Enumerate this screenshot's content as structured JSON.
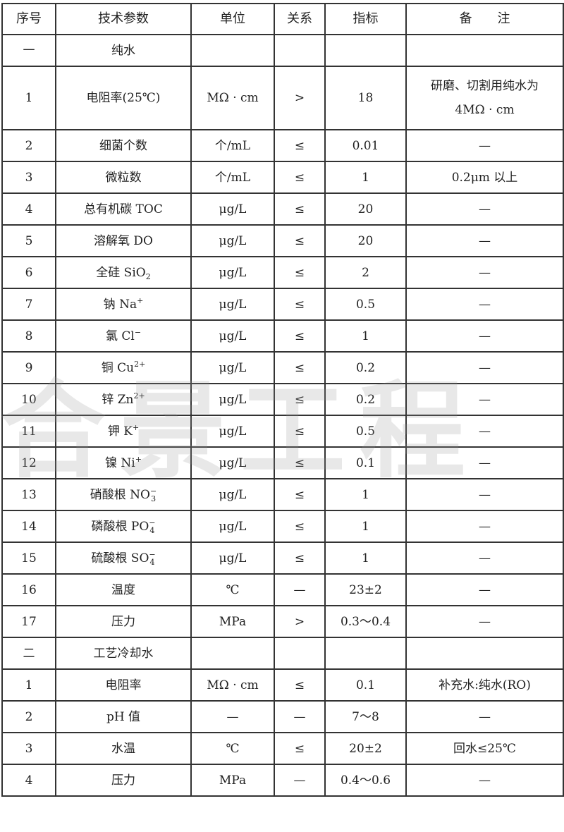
{
  "header": [
    "序号",
    "技术参数",
    "单位",
    "关系",
    "指标",
    "备　　注"
  ],
  "rows": [
    {
      "no": "一",
      "param": "纯水",
      "sub": "",
      "sup": "",
      "unit": "",
      "rel": "",
      "value": "",
      "note": "",
      "section": true
    },
    {
      "no": "1",
      "param": "电阻率(25℃)",
      "sub": "",
      "sup": "",
      "unit": "MΩ · cm",
      "rel": ">",
      "value": "18",
      "note": "研磨、切割用纯水为",
      "note2": "4MΩ · cm",
      "tall": true
    },
    {
      "no": "2",
      "param": "细菌个数",
      "sub": "",
      "sup": "",
      "unit": "个/mL",
      "rel": "≤",
      "value": "0.01",
      "note": "—"
    },
    {
      "no": "3",
      "param": "微粒数",
      "sub": "",
      "sup": "",
      "unit": "个/mL",
      "rel": "≤",
      "value": "1",
      "note": "0.2μm 以上"
    },
    {
      "no": "4",
      "param": "总有机碳 TOC",
      "sub": "",
      "sup": "",
      "unit": "μg/L",
      "rel": "≤",
      "value": "20",
      "note": "—"
    },
    {
      "no": "5",
      "param": "溶解氧 DO",
      "sub": "",
      "sup": "",
      "unit": "μg/L",
      "rel": "≤",
      "value": "20",
      "note": "—"
    },
    {
      "no": "6",
      "param": "全硅 SiO",
      "sub": "2",
      "sup": "",
      "unit": "μg/L",
      "rel": "≤",
      "value": "2",
      "note": "—"
    },
    {
      "no": "7",
      "param": "钠 Na",
      "sub": "",
      "sup": "+",
      "unit": "μg/L",
      "rel": "≤",
      "value": "0.5",
      "note": "—"
    },
    {
      "no": "8",
      "param": "氯 Cl",
      "sub": "",
      "sup": "−",
      "unit": "μg/L",
      "rel": "≤",
      "value": "1",
      "note": "—"
    },
    {
      "no": "9",
      "param": "铜 Cu",
      "sub": "",
      "sup": "2+",
      "unit": "μg/L",
      "rel": "≤",
      "value": "0.2",
      "note": "—"
    },
    {
      "no": "10",
      "param": "锌 Zn",
      "sub": "",
      "sup": "2+",
      "unit": "μg/L",
      "rel": "≤",
      "value": "0.2",
      "note": "—"
    },
    {
      "no": "11",
      "param": "钾 K",
      "sub": "",
      "sup": "+",
      "unit": "μg/L",
      "rel": "≤",
      "value": "0.5",
      "note": "—"
    },
    {
      "no": "12",
      "param": "镍 Ni",
      "sub": "",
      "sup": "+",
      "unit": "μg/L",
      "rel": "≤",
      "value": "0.1",
      "note": "—"
    },
    {
      "no": "13",
      "param": "硝酸根 NO",
      "sub": "3",
      "sup": "−",
      "unit": "μg/L",
      "rel": "≤",
      "value": "1",
      "note": "—"
    },
    {
      "no": "14",
      "param": "磷酸根 PO",
      "sub": "4",
      "sup": "−",
      "unit": "μg/L",
      "rel": "≤",
      "value": "1",
      "note": "—"
    },
    {
      "no": "15",
      "param": "硫酸根 SO",
      "sub": "4",
      "sup": "−",
      "unit": "μg/L",
      "rel": "≤",
      "value": "1",
      "note": "—"
    },
    {
      "no": "16",
      "param": "温度",
      "sub": "",
      "sup": "",
      "unit": "℃",
      "rel": "—",
      "value": "23±2",
      "note": "—"
    },
    {
      "no": "17",
      "param": "压力",
      "sub": "",
      "sup": "",
      "unit": "MPa",
      "rel": ">",
      "value": "0.3～0.4",
      "note": "—"
    },
    {
      "no": "二",
      "param": "工艺冷却水",
      "sub": "",
      "sup": "",
      "unit": "",
      "rel": "",
      "value": "",
      "note": "",
      "section": true
    },
    {
      "no": "1",
      "param": "电阻率",
      "sub": "",
      "sup": "",
      "unit": "MΩ · cm",
      "rel": "≤",
      "value": "0.1",
      "note": "补充水:纯水(RO)"
    },
    {
      "no": "2",
      "param": "pH 值",
      "sub": "",
      "sup": "",
      "unit": "—",
      "rel": "—",
      "value": "7～8",
      "note": "—"
    },
    {
      "no": "3",
      "param": "水温",
      "sub": "",
      "sup": "",
      "unit": "℃",
      "rel": "≤",
      "value": "20±2",
      "note": "回水≤25℃"
    },
    {
      "no": "4",
      "param": "压力",
      "sub": "",
      "sup": "",
      "unit": "MPa",
      "rel": "—",
      "value": "0.4～0.6",
      "note": "—"
    }
  ],
  "watermark": "合景工程"
}
